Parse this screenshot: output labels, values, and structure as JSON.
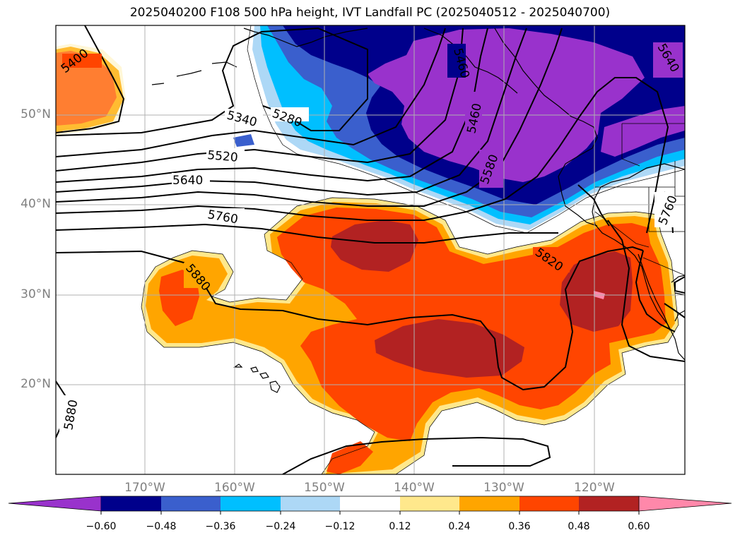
{
  "title": "2025040200 F108 500 hPa height, IVT Landfall PC (2025040512 - 2025040700)",
  "map": {
    "lon_labels": [
      "170°W",
      "160°W",
      "150°W",
      "140°W",
      "130°W",
      "120°W"
    ],
    "lat_labels": [
      "50°N",
      "40°N",
      "30°N",
      "20°N"
    ],
    "contour_labels": [
      "5400",
      "5340",
      "5280",
      "5520",
      "5640",
      "5760",
      "5880",
      "5460",
      "5580",
      "5820",
      "5760",
      "5640",
      "5880",
      "5460"
    ]
  },
  "colorbar": {
    "ticks": [
      "−0.60",
      "−0.48",
      "−0.36",
      "−0.24",
      "−0.12",
      "0.12",
      "0.24",
      "0.36",
      "0.48",
      "0.60"
    ],
    "colors": [
      "#9932cc",
      "#00008b",
      "#3a5fcd",
      "#00bfff",
      "#add8f6",
      "#ffffff",
      "#ffe88c",
      "#ffa500",
      "#ff4500",
      "#b22222",
      "#ff88aa"
    ]
  }
}
